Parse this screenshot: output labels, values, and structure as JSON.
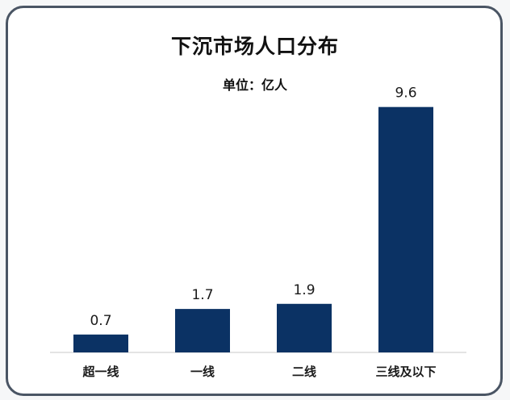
{
  "chart_data": {
    "type": "bar",
    "title": "下沉市场人口分布",
    "subtitle": "单位：亿人",
    "categories": [
      "超一线",
      "一线",
      "二线",
      "三线及以下"
    ],
    "values": [
      0.7,
      1.7,
      1.9,
      9.6
    ],
    "ylim": [
      0,
      10
    ],
    "bar_color": "#0b3264",
    "axis_color": "#c8c8c8",
    "grid": false,
    "legend": "none"
  }
}
